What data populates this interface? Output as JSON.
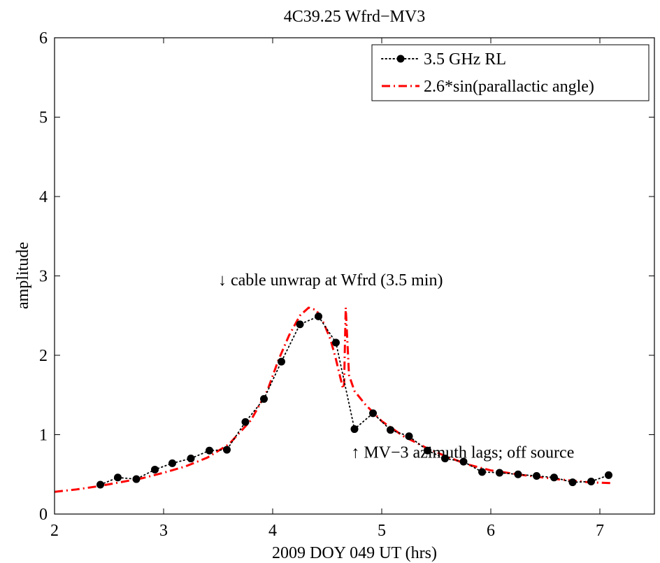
{
  "chart_data": {
    "type": "line",
    "title": "4C39.25 Wfrd−MV3",
    "xlabel": "2009 DOY 049 UT (hrs)",
    "ylabel": "amplitude",
    "xlim": [
      2,
      7.5
    ],
    "ylim": [
      0,
      6
    ],
    "xticks": [
      "2",
      "3",
      "4",
      "5",
      "6",
      "7"
    ],
    "yticks": [
      "0",
      "1",
      "2",
      "3",
      "4",
      "5",
      "6"
    ],
    "xtick_values": [
      2,
      3,
      4,
      5,
      6,
      7
    ],
    "ytick_values": [
      0,
      1,
      2,
      3,
      4,
      5,
      6
    ],
    "grid": false,
    "legend_position": "top-right",
    "series": [
      {
        "name": "3.5 GHz RL",
        "color": "#000000",
        "style": "dotted-with-markers",
        "x": [
          2.42,
          2.58,
          2.75,
          2.92,
          3.08,
          3.25,
          3.42,
          3.58,
          3.75,
          3.92,
          4.08,
          4.25,
          4.42,
          4.58,
          4.75,
          4.92,
          5.08,
          5.25,
          5.42,
          5.58,
          5.75,
          5.92,
          6.08,
          6.25,
          6.42,
          6.58,
          6.75,
          6.92,
          7.08
        ],
        "y": [
          0.37,
          0.46,
          0.44,
          0.56,
          0.64,
          0.7,
          0.8,
          0.81,
          1.16,
          1.45,
          1.92,
          2.39,
          2.49,
          2.16,
          1.07,
          1.27,
          1.06,
          0.98,
          0.8,
          0.7,
          0.66,
          0.53,
          0.52,
          0.5,
          0.48,
          0.46,
          0.4,
          0.41,
          0.49
        ]
      },
      {
        "name": "2.6*sin(parallactic angle)",
        "color": "#ff0000",
        "style": "dash-dot",
        "x": [
          2.0,
          2.2,
          2.4,
          2.6,
          2.8,
          3.0,
          3.2,
          3.4,
          3.6,
          3.8,
          3.95,
          4.05,
          4.15,
          4.25,
          4.33,
          4.4,
          4.47,
          4.53,
          4.58,
          4.62,
          4.645,
          4.655,
          4.665,
          4.67,
          4.7,
          4.75,
          4.85,
          5.0,
          5.2,
          5.4,
          5.6,
          5.8,
          6.0,
          6.3,
          6.6,
          6.9,
          7.1
        ],
        "y": [
          0.28,
          0.31,
          0.35,
          0.4,
          0.45,
          0.52,
          0.6,
          0.71,
          0.88,
          1.18,
          1.55,
          1.93,
          2.25,
          2.5,
          2.6,
          2.57,
          2.4,
          2.2,
          1.95,
          1.72,
          1.58,
          1.64,
          2.3,
          2.6,
          1.75,
          1.55,
          1.38,
          1.17,
          0.98,
          0.84,
          0.72,
          0.62,
          0.55,
          0.49,
          0.44,
          0.4,
          0.39
        ]
      }
    ],
    "annotations": [
      {
        "text": "↓ cable unwrap at Wfrd (3.5 min)",
        "x": 3.5,
        "y": 2.95
      },
      {
        "text": "↑ MV−3 azimuth lags; off source",
        "x": 4.72,
        "y": 0.78
      }
    ]
  }
}
